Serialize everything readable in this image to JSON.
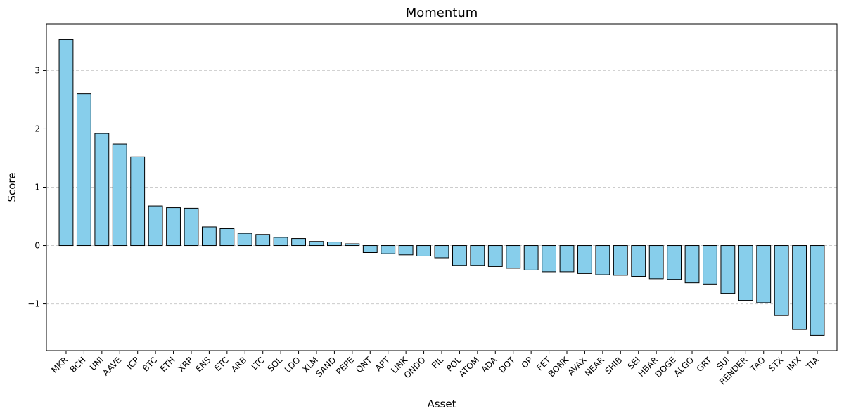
{
  "chart_data": {
    "type": "bar",
    "title": "Momentum",
    "xlabel": "Asset",
    "ylabel": "Score",
    "ylim": [
      -1.8,
      3.8
    ],
    "yticks": [
      -1,
      0,
      1,
      2,
      3
    ],
    "ytick_labels": [
      "−1",
      "0",
      "1",
      "2",
      "3"
    ],
    "grid": "y-dashed",
    "colors": {
      "bar_fill": "#87CEEB",
      "bar_edge": "#000000",
      "grid": "#cccccc"
    },
    "categories": [
      "MKR",
      "BCH",
      "UNI",
      "AAVE",
      "ICP",
      "BTC",
      "ETH",
      "XRP",
      "ENS",
      "ETC",
      "ARB",
      "LTC",
      "SOL",
      "LDO",
      "XLM",
      "SAND",
      "PEPE",
      "QNT",
      "APT",
      "LINK",
      "ONDO",
      "FIL",
      "POL",
      "ATOM",
      "ADA",
      "DOT",
      "OP",
      "FET",
      "BONK",
      "AVAX",
      "NEAR",
      "SHIB",
      "SEI",
      "HBAR",
      "DOGE",
      "ALGO",
      "GRT",
      "SUI",
      "RENDER",
      "TAO",
      "STX",
      "IMX",
      "TIA"
    ],
    "values": [
      3.53,
      2.6,
      1.92,
      1.74,
      1.52,
      0.68,
      0.65,
      0.64,
      0.32,
      0.29,
      0.21,
      0.19,
      0.14,
      0.12,
      0.07,
      0.06,
      0.03,
      -0.12,
      -0.14,
      -0.16,
      -0.18,
      -0.21,
      -0.34,
      -0.34,
      -0.36,
      -0.39,
      -0.42,
      -0.45,
      -0.45,
      -0.48,
      -0.5,
      -0.51,
      -0.53,
      -0.57,
      -0.58,
      -0.64,
      -0.66,
      -0.82,
      -0.94,
      -0.98,
      -1.2,
      -1.44,
      -1.54
    ]
  }
}
